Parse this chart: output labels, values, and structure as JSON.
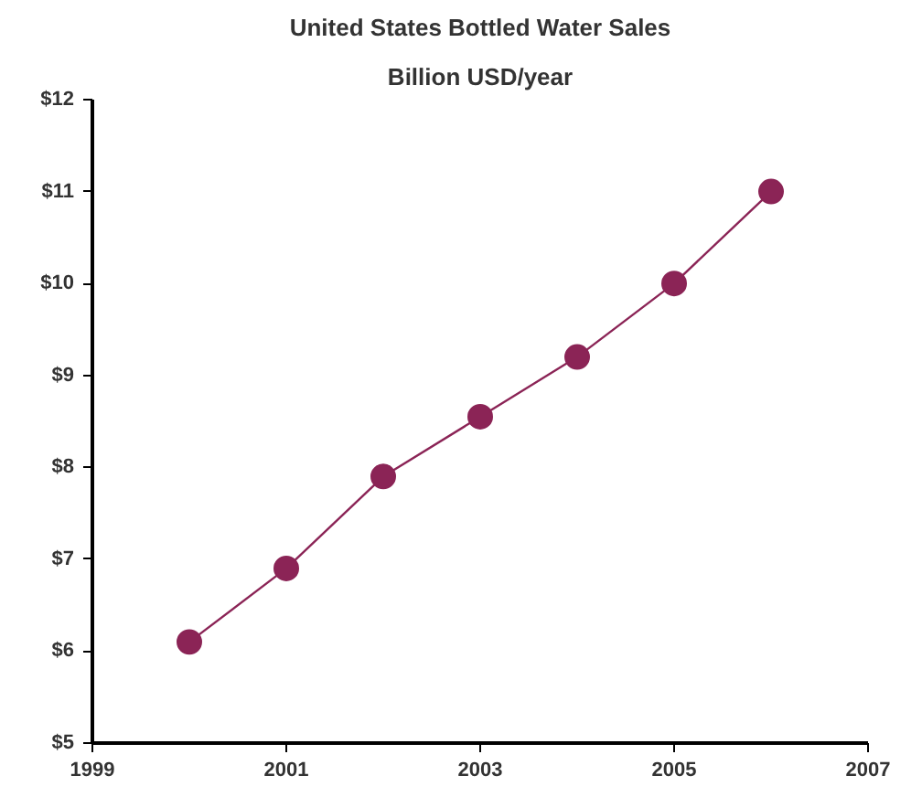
{
  "chart_data": {
    "type": "line",
    "title": "United States Bottled Water Sales",
    "subtitle": "Billion USD/year",
    "x": [
      2000,
      2001,
      2002,
      2003,
      2004,
      2005,
      2006
    ],
    "series": [
      {
        "color": "#8b2456",
        "values": [
          6.1,
          6.9,
          7.9,
          8.55,
          9.2,
          10.0,
          11.0
        ]
      }
    ],
    "xlim": [
      1999,
      2007
    ],
    "xticks": [
      1999,
      2001,
      2003,
      2005,
      2007
    ],
    "ylim": [
      5,
      12
    ],
    "yticks": [
      {
        "value": 5,
        "label": "$5"
      },
      {
        "value": 6,
        "label": "$6"
      },
      {
        "value": 7,
        "label": "$7"
      },
      {
        "value": 8,
        "label": "$8"
      },
      {
        "value": 9,
        "label": "$9"
      },
      {
        "value": 10,
        "label": "$10"
      },
      {
        "value": 11,
        "label": "$11"
      },
      {
        "value": 12,
        "label": "$12"
      }
    ],
    "grid": false,
    "marker": "circle",
    "line_style": "solid"
  }
}
